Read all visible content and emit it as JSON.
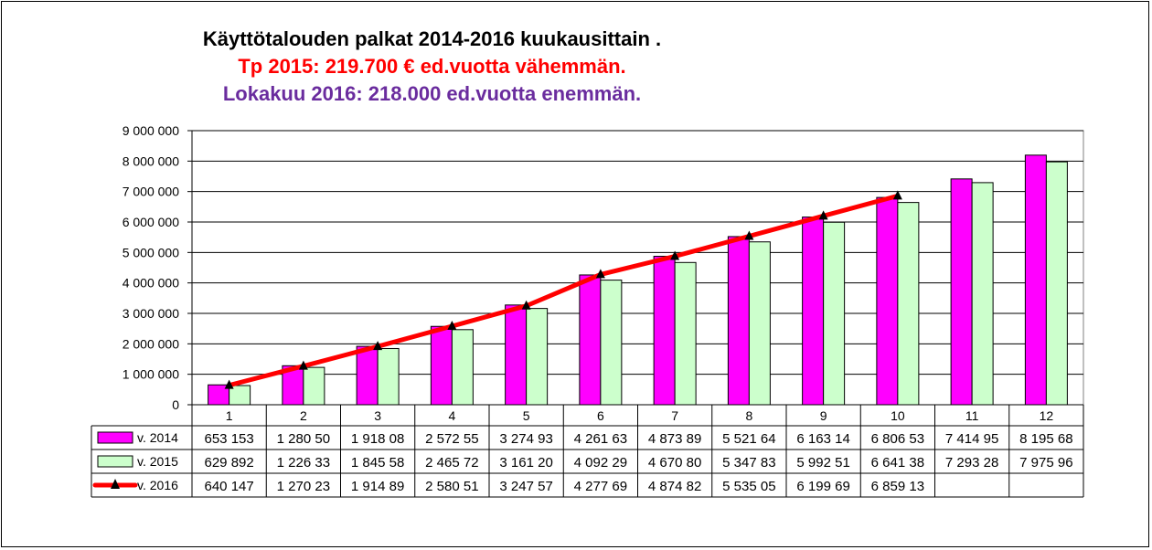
{
  "page": {
    "title_line1": "Käyttötalouden  palkat 2014-2016 kuukausittain  .",
    "title_line2": "Tp  2015: 219.700 € ed.vuotta vähemmän.",
    "title_line3": "Lokakuu 2016: 218.000 ed.vuotta enemmän.",
    "colors": {
      "title_line2": "#ff0000",
      "title_line3": "#6a2c9e"
    }
  },
  "chart_data": {
    "type": "bar",
    "categories": [
      "1",
      "2",
      "3",
      "4",
      "5",
      "6",
      "7",
      "8",
      "9",
      "10",
      "11",
      "12"
    ],
    "ylim": [
      0,
      9000000
    ],
    "yticks": [
      "0",
      "1 000 000",
      "2 000 000",
      "3 000 000",
      "4 000 000",
      "5 000 000",
      "6 000 000",
      "7 000 000",
      "8 000 000",
      "9 000 000"
    ],
    "grid": true,
    "series": [
      {
        "name": "v. 2014",
        "kind": "bar",
        "color": "#ff00ff",
        "values": [
          653153,
          1280500,
          1918080,
          2572550,
          3274930,
          4261630,
          4873890,
          5521640,
          6163140,
          6806530,
          7414950,
          8195680
        ],
        "table_labels": [
          "653 153",
          "1 280 50",
          "1 918 08",
          "2 572 55",
          "3 274 93",
          "4 261 63",
          "4 873 89",
          "5 521 64",
          "6 163 14",
          "6 806 53",
          "7 414 95",
          "8 195 68"
        ]
      },
      {
        "name": "v. 2015",
        "kind": "bar",
        "color": "#ccffcc",
        "values": [
          629892,
          1226330,
          1845580,
          2465720,
          3161200,
          4092290,
          4670800,
          5347830,
          5992510,
          6641380,
          7293280,
          7975960
        ],
        "table_labels": [
          "629 892",
          "1 226 33",
          "1 845 58",
          "2 465 72",
          "3 161 20",
          "4 092 29",
          "4 670 80",
          "5 347 83",
          "5 992 51",
          "6 641 38",
          "7 293 28",
          "7 975 96"
        ]
      },
      {
        "name": "v. 2016",
        "kind": "line",
        "color": "#ff0000",
        "marker": "triangle",
        "values": [
          640147,
          1270230,
          1914890,
          2580510,
          3247570,
          4277690,
          4874820,
          5535050,
          6199690,
          6859130,
          null,
          null
        ],
        "table_labels": [
          "640 147",
          "1 270 23",
          "1 914 89",
          "2 580 51",
          "3 247 57",
          "4 277 69",
          "4 874 82",
          "5 535 05",
          "6 199 69",
          "6 859 13",
          "",
          ""
        ]
      }
    ]
  }
}
